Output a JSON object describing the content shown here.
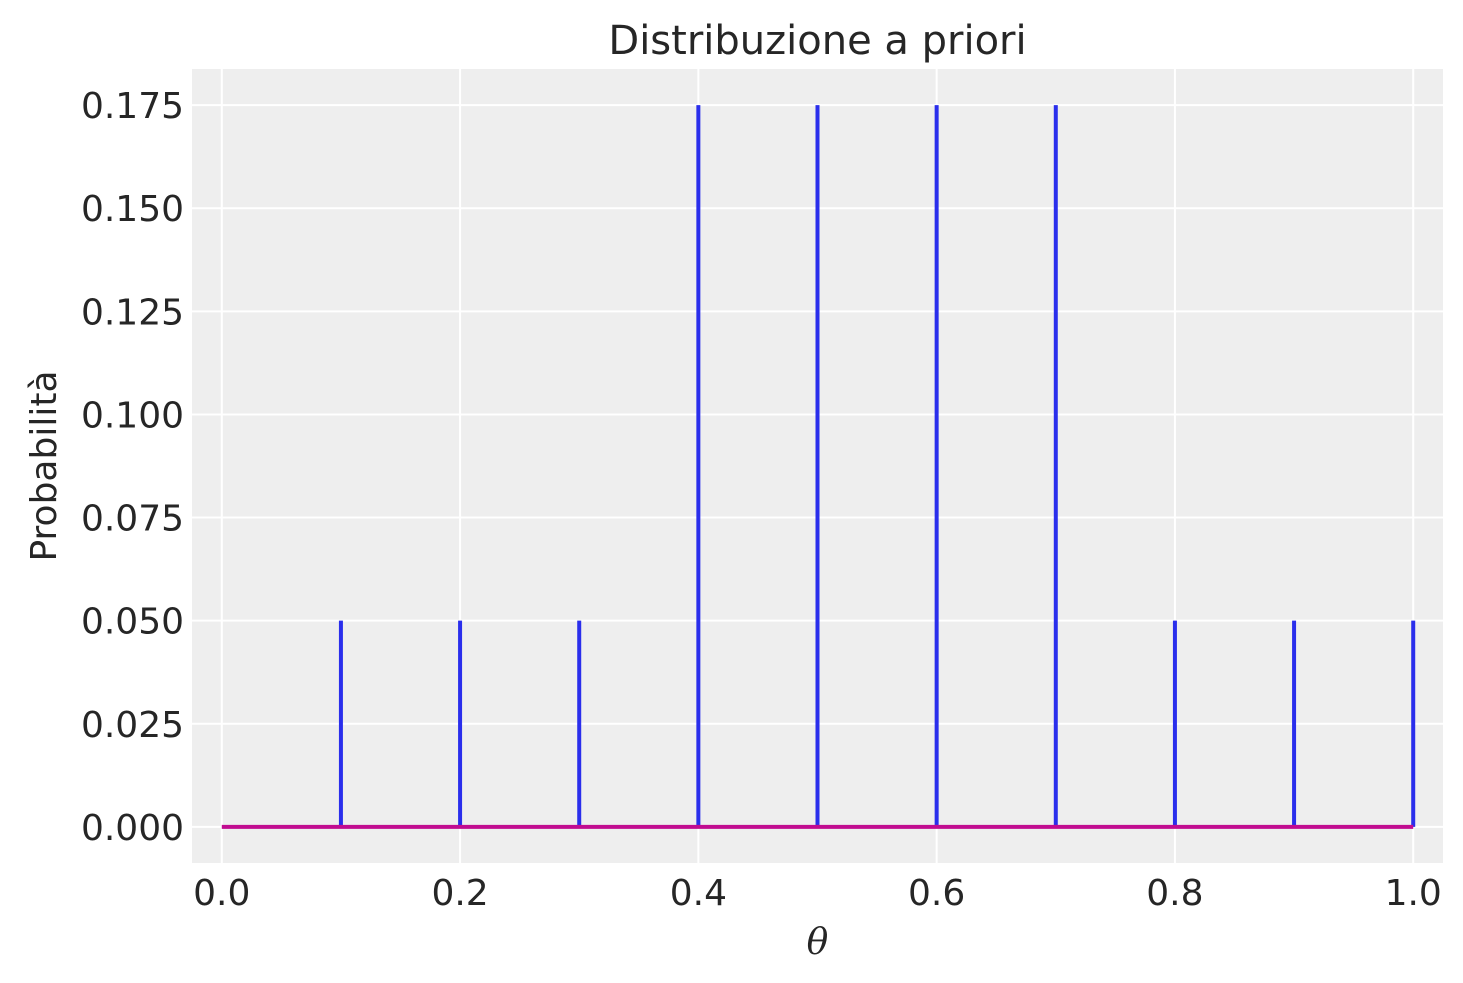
{
  "chart_data": {
    "type": "stem",
    "title": "Distribuzione a priori",
    "xlabel": "θ",
    "ylabel": "Probabilità",
    "x": [
      0.0,
      0.1,
      0.2,
      0.3,
      0.4,
      0.5,
      0.6,
      0.7,
      0.8,
      0.9,
      1.0
    ],
    "values": [
      0.0,
      0.05,
      0.05,
      0.05,
      0.175,
      0.175,
      0.175,
      0.175,
      0.05,
      0.05,
      0.05
    ],
    "xlim": [
      -0.025,
      1.025
    ],
    "ylim": [
      -0.00875,
      0.18375
    ],
    "xticks": [
      0.0,
      0.2,
      0.4,
      0.6,
      0.8,
      1.0
    ],
    "xtick_labels": [
      "0.0",
      "0.2",
      "0.4",
      "0.6",
      "0.8",
      "1.0"
    ],
    "yticks": [
      0.0,
      0.025,
      0.05,
      0.075,
      0.1,
      0.125,
      0.15,
      0.175
    ],
    "ytick_labels": [
      "0.000",
      "0.025",
      "0.050",
      "0.075",
      "0.100",
      "0.125",
      "0.150",
      "0.175"
    ],
    "grid": true,
    "colors": {
      "stem": "#2a2eec",
      "baseline": "#c10c90",
      "plot_background": "#eeeeee",
      "grid": "#ffffff",
      "text": "#262626"
    }
  }
}
